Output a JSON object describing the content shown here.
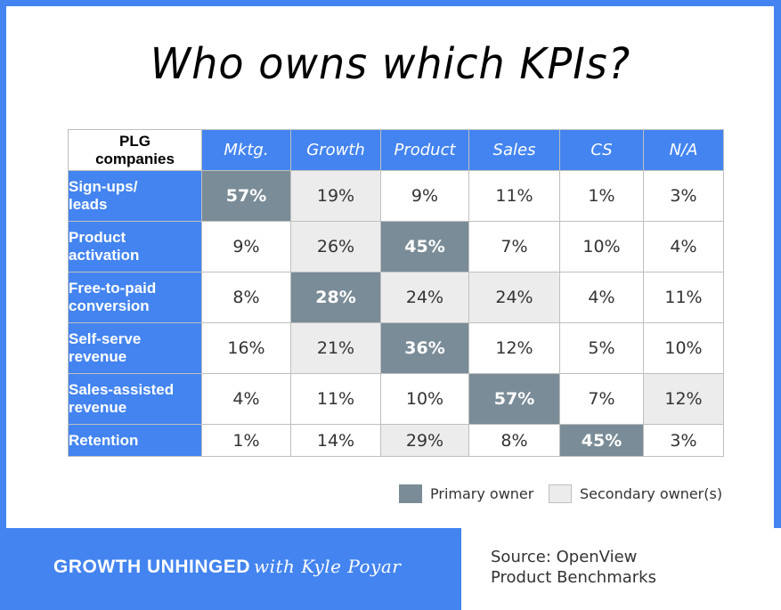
{
  "title": "Who owns which KPIs?",
  "chart_data": {
    "type": "table",
    "title": "Who owns which KPIs?",
    "corner_label_line1": "PLG",
    "corner_label_line2": "companies",
    "columns": [
      "Mktg.",
      "Growth",
      "Product",
      "Sales",
      "CS",
      "N/A"
    ],
    "rows": [
      {
        "label_line1": "Sign-ups/",
        "label_line2": "leads",
        "values": [
          "57%",
          "19%",
          "9%",
          "11%",
          "1%",
          "3%"
        ],
        "roles": [
          "primary",
          "secondary",
          "none",
          "none",
          "none",
          "none"
        ]
      },
      {
        "label_line1": "Product",
        "label_line2": "activation",
        "values": [
          "9%",
          "26%",
          "45%",
          "7%",
          "10%",
          "4%"
        ],
        "roles": [
          "none",
          "secondary",
          "primary",
          "none",
          "none",
          "none"
        ]
      },
      {
        "label_line1": "Free-to-paid",
        "label_line2": "conversion",
        "values": [
          "8%",
          "28%",
          "24%",
          "24%",
          "4%",
          "11%"
        ],
        "roles": [
          "none",
          "primary",
          "secondary",
          "secondary",
          "none",
          "none"
        ]
      },
      {
        "label_line1": "Self-serve",
        "label_line2": "revenue",
        "values": [
          "16%",
          "21%",
          "36%",
          "12%",
          "5%",
          "10%"
        ],
        "roles": [
          "none",
          "secondary",
          "primary",
          "none",
          "none",
          "none"
        ]
      },
      {
        "label_line1": "Sales-assisted",
        "label_line2": "revenue",
        "values": [
          "4%",
          "11%",
          "10%",
          "57%",
          "7%",
          "12%"
        ],
        "roles": [
          "none",
          "none",
          "none",
          "primary",
          "none",
          "secondary"
        ]
      },
      {
        "label_line1": "Retention",
        "label_line2": "",
        "values": [
          "1%",
          "14%",
          "29%",
          "8%",
          "45%",
          "3%"
        ],
        "roles": [
          "none",
          "none",
          "secondary",
          "none",
          "primary",
          "none"
        ]
      }
    ],
    "legend": [
      {
        "key": "primary",
        "label": "Primary owner",
        "color": "#7a8c97"
      },
      {
        "key": "secondary",
        "label": "Secondary owner(s)",
        "color": "#ececec"
      }
    ],
    "legend_position": "bottom-right"
  },
  "colors": {
    "accent": "#4384f0",
    "primary_cell": "#7a8c97",
    "secondary_cell": "#ececec"
  },
  "footer": {
    "brand": "GROWTH UNHINGED",
    "with_text": "with Kyle Poyar",
    "source_line1": "Source: OpenView",
    "source_line2": "Product Benchmarks"
  }
}
